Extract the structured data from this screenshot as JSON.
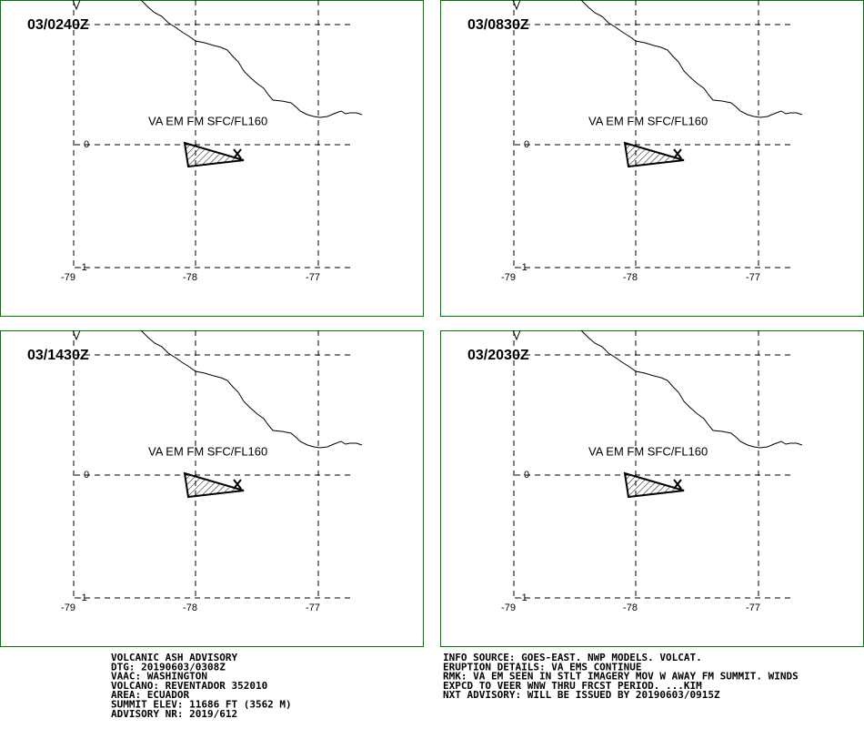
{
  "panels": [
    {
      "time": "03/0240Z",
      "annotation": "VA EM FM SFC/FL160",
      "lat_labels": [
        "0",
        "-1"
      ],
      "lon_labels": [
        "-79",
        "-78",
        "-77"
      ]
    },
    {
      "time": "03/0830Z",
      "annotation": "VA EM FM SFC/FL160",
      "lat_labels": [
        "0",
        "-1"
      ],
      "lon_labels": [
        "-79",
        "-78",
        "-77"
      ]
    },
    {
      "time": "03/1430Z",
      "annotation": "VA EM FM SFC/FL160",
      "lat_labels": [
        "0",
        "-1"
      ],
      "lon_labels": [
        "-79",
        "-78",
        "-77"
      ]
    },
    {
      "time": "03/2030Z",
      "annotation": "VA EM FM SFC/FL160",
      "lat_labels": [
        "0",
        "-1"
      ],
      "lon_labels": [
        "-79",
        "-78",
        "-77"
      ]
    }
  ],
  "advisory_left": [
    "VOLCANIC ASH ADVISORY",
    "DTG: 20190603/0308Z",
    "VAAC: WASHINGTON",
    "VOLCANO: REVENTADOR 352010",
    "AREA: ECUADOR",
    "SUMMIT ELEV: 11686 FT (3562 M)",
    "ADVISORY NR: 2019/612"
  ],
  "advisory_right": [
    "INFO SOURCE: GOES-EAST. NWP MODELS. VOLCAT.",
    "ERUPTION DETAILS: VA EMS CONTINUE",
    "RMK: VA EM SEEN IN STLT IMAGERY MOV W AWAY FM SUMMIT. WINDS",
    "EXPCD TO VEER WNW THRU FRCST PERIOD. ...KIM",
    "NXT ADVISORY: WILL BE ISSUED BY 20190603/0915Z"
  ]
}
